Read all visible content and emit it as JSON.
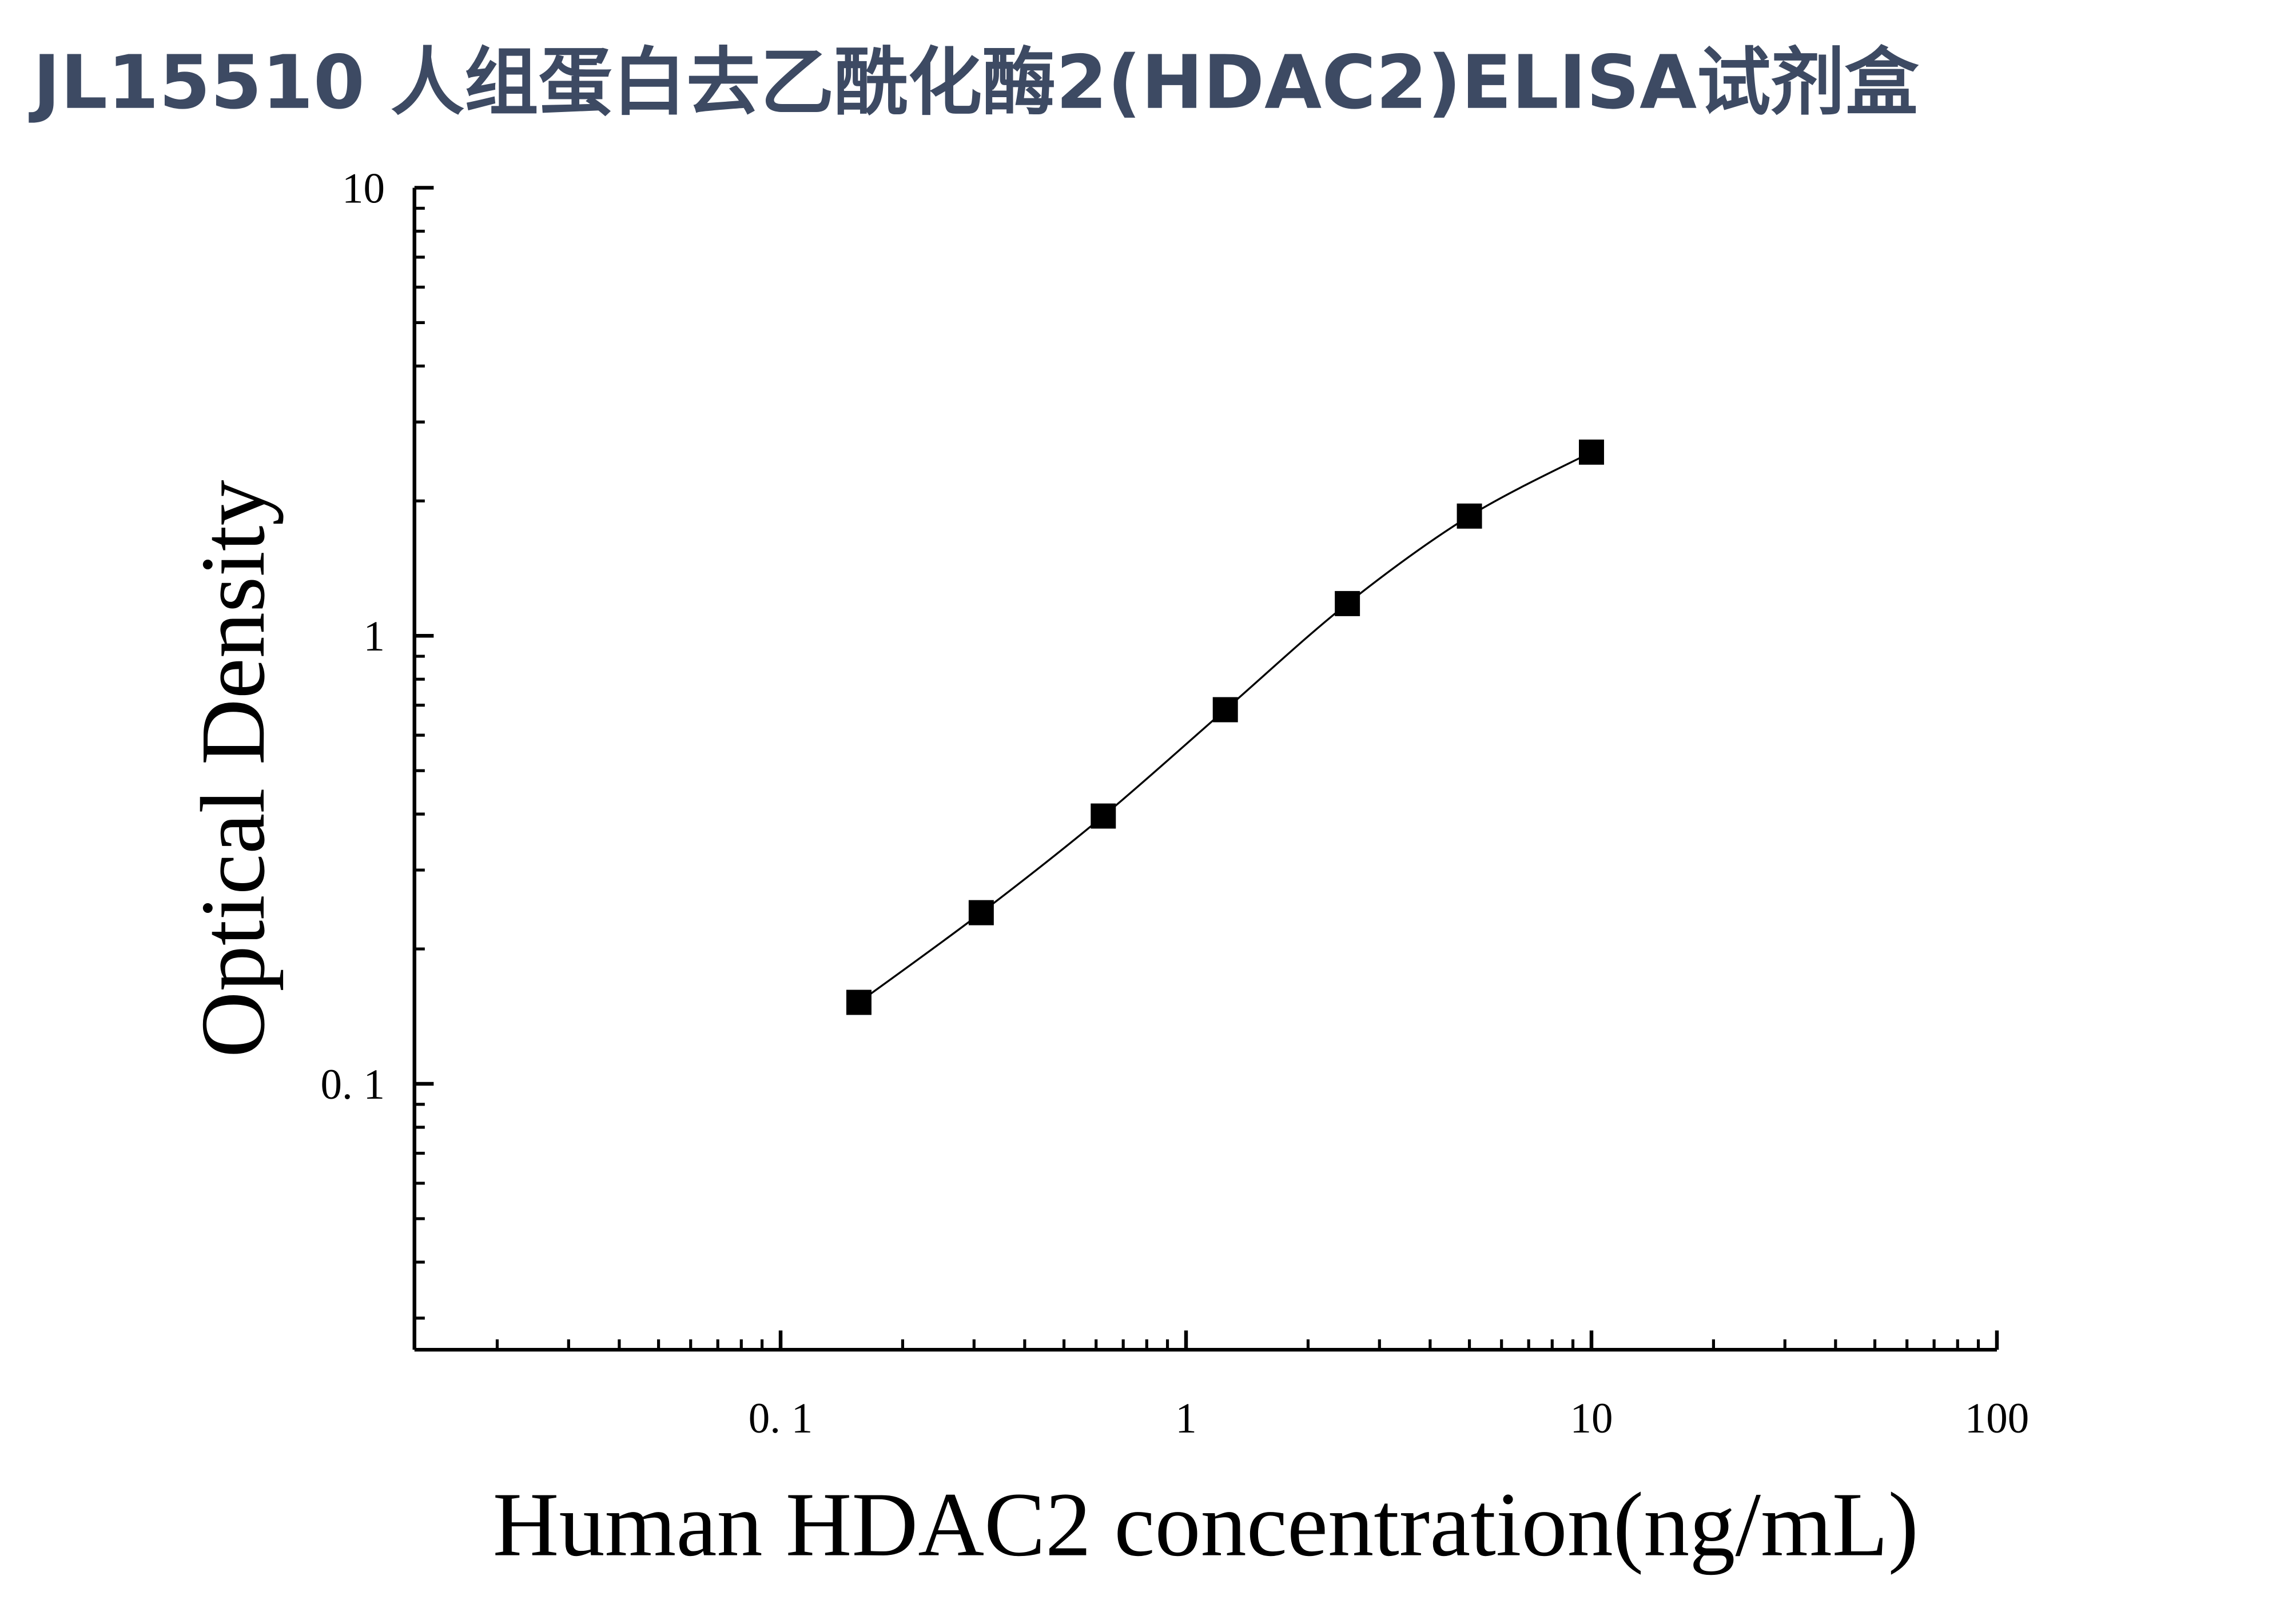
{
  "chart_data": {
    "type": "scatter",
    "title": "JL15510 人组蛋白去乙酰化酶2(HDAC2)ELISA试剂盒",
    "x_label": "Human HDAC2 concentration(ng/mL)",
    "y_label": "Optical Density",
    "x": [
      0.156,
      0.3125,
      0.625,
      1.25,
      2.5,
      5,
      10
    ],
    "series": [
      {
        "color": "#000000",
        "values": [
          0.152,
          0.241,
          0.396,
          0.684,
          1.18,
          1.85,
          2.57
        ]
      }
    ],
    "xlim": [
      0.0125,
      100
    ],
    "ylim": [
      0.0255,
      10
    ],
    "xticks": [
      {
        "value": 0.1,
        "label": "0. 1"
      },
      1,
      10,
      100
    ],
    "yticks": [
      {
        "value": 0.1,
        "label": "0. 1"
      },
      1,
      10
    ],
    "xscale": "log",
    "yscale": "log",
    "fit_line": true
  }
}
